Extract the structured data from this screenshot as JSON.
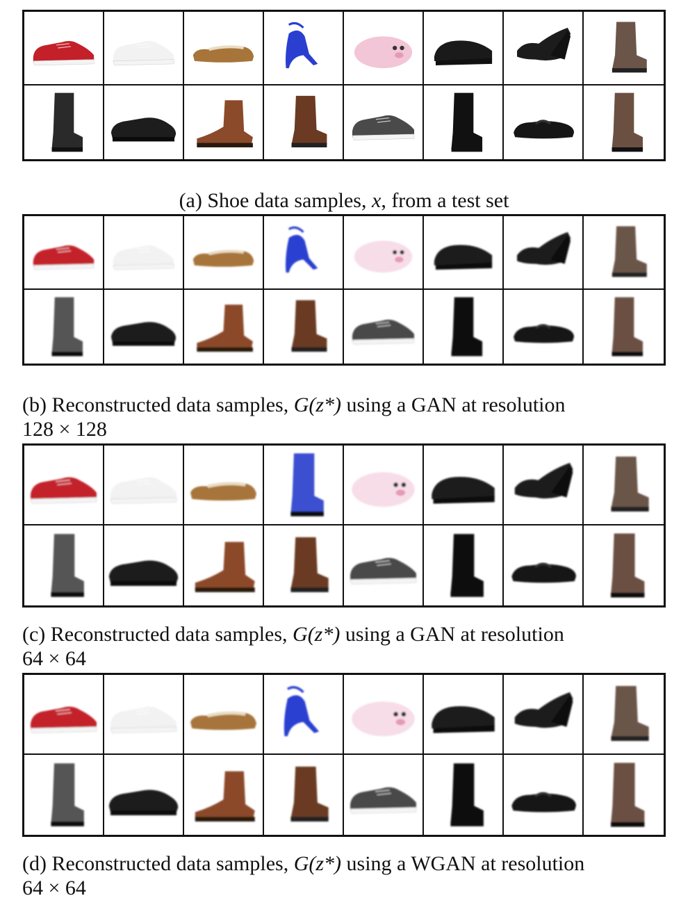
{
  "panels": [
    {
      "id": "a",
      "caption_prefix": "(a) Shoe data samples, ",
      "caption_math": "x",
      "caption_suffix": ", from a test set",
      "caption_line2": ""
    },
    {
      "id": "b",
      "caption_prefix": "(b) Reconstructed data samples, ",
      "caption_math": "G(z*)",
      "caption_suffix": " using a GAN at resolution",
      "caption_line2": "128 × 128"
    },
    {
      "id": "c",
      "caption_prefix": "(c) Reconstructed data samples, ",
      "caption_math": "G(z*)",
      "caption_suffix": " using a GAN at resolution",
      "caption_line2": "64 × 64"
    },
    {
      "id": "d",
      "caption_prefix": "(d) Reconstructed data samples, ",
      "caption_math": "G(z*)",
      "caption_suffix": " using a WGAN at resolution",
      "caption_line2": "64 × 64"
    }
  ],
  "shoes": [
    {
      "type": "sneaker",
      "color": "#c4202a"
    },
    {
      "type": "sneaker",
      "color": "#f2f2f2"
    },
    {
      "type": "loafer",
      "color": "#a7743a"
    },
    {
      "type": "heel",
      "color": "#2a3fd0"
    },
    {
      "type": "slipper",
      "color": "#f2c6d6"
    },
    {
      "type": "clog",
      "color": "#1a1a1a"
    },
    {
      "type": "wedge",
      "color": "#1c1c1c"
    },
    {
      "type": "boot",
      "color": "#6b5548"
    },
    {
      "type": "tallboot",
      "color": "#2a2a2a"
    },
    {
      "type": "oxford",
      "color": "#1d1d1d"
    },
    {
      "type": "ankleboot",
      "color": "#8b4a2a"
    },
    {
      "type": "boot",
      "color": "#6a3a22"
    },
    {
      "type": "sneaker",
      "color": "#4a4a4a"
    },
    {
      "type": "tallboot",
      "color": "#111111"
    },
    {
      "type": "flat",
      "color": "#161616"
    },
    {
      "type": "tallboot",
      "color": "#6b5042"
    }
  ]
}
